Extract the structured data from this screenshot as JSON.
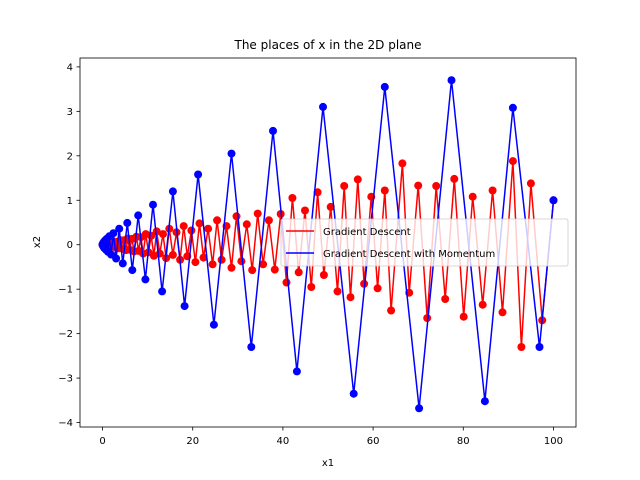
{
  "chart_data": {
    "type": "line",
    "title": "The places of x in the 2D plane",
    "xlabel": "x1",
    "ylabel": "x2",
    "xlim": [
      -5,
      105
    ],
    "ylim": [
      -4.1,
      4.2
    ],
    "xticks": [
      0,
      20,
      40,
      60,
      80,
      100
    ],
    "yticks": [
      -4,
      -3,
      -2,
      -1,
      0,
      1,
      2,
      3,
      4
    ],
    "grid": false,
    "legend_position": "center-right",
    "series": [
      {
        "name": "Gradient Descent",
        "color": "#ff0000",
        "marker": "circle",
        "points": [
          [
            100,
            1.0
          ],
          [
            97.5,
            -1.7
          ],
          [
            95.0,
            1.38
          ],
          [
            92.9,
            -2.3
          ],
          [
            91.0,
            1.88
          ],
          [
            88.7,
            -1.52
          ],
          [
            86.5,
            1.22
          ],
          [
            84.3,
            -1.35
          ],
          [
            82.1,
            1.08
          ],
          [
            80.1,
            -1.62
          ],
          [
            78.0,
            1.48
          ],
          [
            76.0,
            -1.22
          ],
          [
            74.0,
            1.32
          ],
          [
            72.0,
            -1.65
          ],
          [
            70.0,
            1.33
          ],
          [
            68.0,
            -1.08
          ],
          [
            66.5,
            1.83
          ],
          [
            64.0,
            -1.48
          ],
          [
            62.6,
            1.22
          ],
          [
            61.0,
            -0.98
          ],
          [
            59.6,
            1.08
          ],
          [
            58.0,
            -0.88
          ],
          [
            56.6,
            1.47
          ],
          [
            55.0,
            -1.18
          ],
          [
            53.6,
            1.32
          ],
          [
            52.1,
            -1.05
          ],
          [
            50.6,
            0.85
          ],
          [
            49.1,
            -0.68
          ],
          [
            47.7,
            1.18
          ],
          [
            46.3,
            -0.95
          ],
          [
            44.9,
            0.77
          ],
          [
            43.5,
            -0.62
          ],
          [
            42.1,
            1.05
          ],
          [
            40.8,
            -0.85
          ],
          [
            39.5,
            0.69
          ],
          [
            38.2,
            -0.56
          ],
          [
            36.9,
            0.55
          ],
          [
            35.6,
            -0.44
          ],
          [
            34.4,
            0.7
          ],
          [
            33.2,
            -0.57
          ],
          [
            32.0,
            0.46
          ],
          [
            30.8,
            -0.37
          ],
          [
            29.7,
            0.64
          ],
          [
            28.6,
            -0.52
          ],
          [
            27.5,
            0.42
          ],
          [
            26.4,
            -0.34
          ],
          [
            25.4,
            0.55
          ],
          [
            24.4,
            -0.44
          ],
          [
            23.4,
            0.36
          ],
          [
            22.4,
            -0.29
          ],
          [
            21.5,
            0.48
          ],
          [
            20.6,
            -0.39
          ],
          [
            19.7,
            0.32
          ],
          [
            18.8,
            -0.26
          ],
          [
            18.0,
            0.42
          ],
          [
            17.2,
            -0.34
          ],
          [
            16.4,
            0.28
          ],
          [
            15.6,
            -0.23
          ],
          [
            14.8,
            0.36
          ],
          [
            14.1,
            -0.3
          ],
          [
            13.4,
            0.24
          ],
          [
            12.7,
            -0.2
          ],
          [
            12.0,
            0.3
          ],
          [
            11.4,
            -0.25
          ],
          [
            10.8,
            0.2
          ],
          [
            10.2,
            -0.17
          ],
          [
            9.6,
            0.24
          ],
          [
            9.0,
            -0.2
          ],
          [
            8.5,
            0.17
          ],
          [
            8.0,
            -0.14
          ],
          [
            7.5,
            0.18
          ],
          [
            7.0,
            -0.15
          ],
          [
            6.5,
            0.13
          ],
          [
            6.0,
            -0.11
          ],
          [
            5.6,
            0.14
          ],
          [
            5.2,
            -0.12
          ],
          [
            4.8,
            0.1
          ],
          [
            4.4,
            -0.09
          ],
          [
            4.0,
            0.1
          ],
          [
            3.6,
            -0.08
          ],
          [
            3.3,
            0.07
          ],
          [
            3.0,
            -0.06
          ],
          [
            2.7,
            0.06
          ],
          [
            2.4,
            -0.05
          ],
          [
            2.1,
            0.05
          ],
          [
            1.8,
            -0.04
          ],
          [
            1.5,
            0.03
          ],
          [
            1.2,
            -0.03
          ],
          [
            1.0,
            0.02
          ],
          [
            0.8,
            -0.02
          ],
          [
            0.6,
            0.01
          ],
          [
            0.4,
            -0.01
          ],
          [
            0.2,
            0.005
          ],
          [
            0.1,
            -0.003
          ],
          [
            0.0,
            0.0
          ]
        ]
      },
      {
        "name": "Gradient Descent with Momentum",
        "color": "#0000ff",
        "marker": "circle",
        "points": [
          [
            100,
            1.0
          ],
          [
            96.9,
            -2.3
          ],
          [
            91.0,
            3.08
          ],
          [
            84.8,
            -3.52
          ],
          [
            77.4,
            3.7
          ],
          [
            70.2,
            -3.68
          ],
          [
            62.6,
            3.55
          ],
          [
            55.7,
            -3.35
          ],
          [
            48.9,
            3.1
          ],
          [
            43.1,
            -2.85
          ],
          [
            37.8,
            2.56
          ],
          [
            33.0,
            -2.3
          ],
          [
            28.6,
            2.05
          ],
          [
            24.7,
            -1.8
          ],
          [
            21.2,
            1.58
          ],
          [
            18.2,
            -1.38
          ],
          [
            15.6,
            1.2
          ],
          [
            13.2,
            -1.05
          ],
          [
            11.2,
            0.9
          ],
          [
            9.5,
            -0.78
          ],
          [
            7.9,
            0.66
          ],
          [
            6.6,
            -0.57
          ],
          [
            5.5,
            0.49
          ],
          [
            4.5,
            -0.42
          ],
          [
            3.7,
            0.36
          ],
          [
            3.0,
            -0.31
          ],
          [
            2.4,
            0.26
          ],
          [
            1.9,
            -0.22
          ],
          [
            1.5,
            0.19
          ],
          [
            1.2,
            -0.16
          ],
          [
            0.9,
            0.13
          ],
          [
            0.7,
            -0.11
          ],
          [
            0.5,
            0.09
          ],
          [
            0.35,
            -0.07
          ],
          [
            0.22,
            0.05
          ],
          [
            0.12,
            -0.03
          ],
          [
            0.05,
            0.02
          ],
          [
            0.0,
            0.0
          ]
        ]
      }
    ]
  }
}
